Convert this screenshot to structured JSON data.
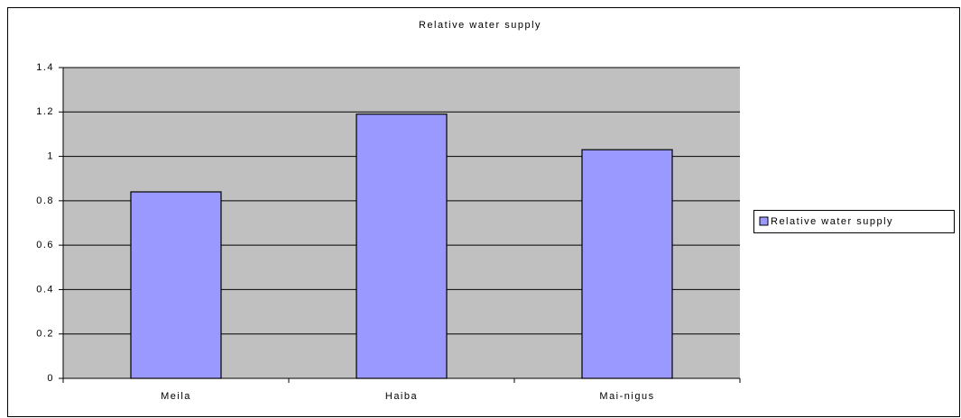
{
  "chart_data": {
    "type": "bar",
    "title": "Relative water supply",
    "categories": [
      "Meila",
      "Haiba",
      "Mai-nigus"
    ],
    "series": [
      {
        "name": "Relative water supply",
        "color": "#9999ff",
        "values": [
          0.84,
          1.19,
          1.03
        ]
      }
    ],
    "ylim": [
      0,
      1.4
    ],
    "yticks": [
      0,
      0.2,
      0.4,
      0.6,
      0.8,
      1,
      1.2,
      1.4
    ],
    "grid": true,
    "legend": "right"
  }
}
